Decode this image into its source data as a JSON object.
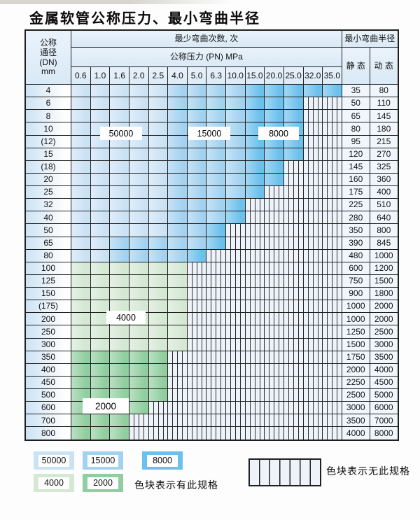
{
  "title": "金属软管公称压力、最小弯曲半径",
  "table": {
    "dn_header_lines": [
      "公称",
      "通径",
      "(DN)",
      "mm"
    ],
    "cycles_header": "最少弯曲次数, 次",
    "pressure_header": "公称压力 (PN) MPa",
    "radius_header": "最小弯曲半径",
    "static_label": "静 态",
    "dynamic_label": "动 态",
    "pressure_columns": [
      "0.6",
      "1.0",
      "1.6",
      "2.0",
      "2.5",
      "4.0",
      "5.0",
      "6.3",
      "10.0",
      "15.0",
      "20.0",
      "25.0",
      "32.0",
      "35.0"
    ],
    "overlay_labels": [
      {
        "text": "50000"
      },
      {
        "text": "15000"
      },
      {
        "text": "8000"
      },
      {
        "text": "4000"
      },
      {
        "text": "2000"
      }
    ],
    "rows": [
      {
        "dn": "4",
        "static": "35",
        "dynamic": "80",
        "cells": [
          "50000",
          "50000",
          "50000",
          "50000",
          "50000",
          "15000",
          "15000",
          "15000",
          "15000",
          "8000",
          "8000",
          "8000",
          "8000",
          "8000"
        ]
      },
      {
        "dn": "6",
        "static": "50",
        "dynamic": "110",
        "cells": [
          "50000",
          "50000",
          "50000",
          "50000",
          "50000",
          "15000",
          "15000",
          "15000",
          "15000",
          "8000",
          "8000",
          "8000",
          "none",
          "none"
        ]
      },
      {
        "dn": "8",
        "static": "65",
        "dynamic": "145",
        "cells": [
          "50000",
          "50000",
          "50000",
          "50000",
          "50000",
          "15000",
          "15000",
          "15000",
          "15000",
          "8000",
          "8000",
          "8000",
          "none",
          "none"
        ]
      },
      {
        "dn": "10",
        "static": "80",
        "dynamic": "180",
        "cells": [
          "50000",
          "50000",
          "50000",
          "50000",
          "50000",
          "15000",
          "15000",
          "15000",
          "15000",
          "8000",
          "8000",
          "8000",
          "none",
          "none"
        ]
      },
      {
        "dn": "(12)",
        "static": "95",
        "dynamic": "215",
        "cells": [
          "50000",
          "50000",
          "50000",
          "50000",
          "50000",
          "15000",
          "15000",
          "15000",
          "15000",
          "8000",
          "8000",
          "8000",
          "none",
          "none"
        ]
      },
      {
        "dn": "15",
        "static": "120",
        "dynamic": "270",
        "cells": [
          "50000",
          "50000",
          "50000",
          "50000",
          "50000",
          "15000",
          "15000",
          "15000",
          "15000",
          "8000",
          "8000",
          "8000",
          "none",
          "none"
        ]
      },
      {
        "dn": "(18)",
        "static": "145",
        "dynamic": "325",
        "cells": [
          "50000",
          "50000",
          "50000",
          "50000",
          "50000",
          "15000",
          "15000",
          "15000",
          "15000",
          "8000",
          "8000",
          "none",
          "none",
          "none"
        ]
      },
      {
        "dn": "20",
        "static": "160",
        "dynamic": "360",
        "cells": [
          "50000",
          "50000",
          "50000",
          "50000",
          "50000",
          "15000",
          "15000",
          "15000",
          "15000",
          "8000",
          "8000",
          "none",
          "none",
          "none"
        ]
      },
      {
        "dn": "25",
        "static": "175",
        "dynamic": "400",
        "cells": [
          "50000",
          "50000",
          "50000",
          "50000",
          "50000",
          "15000",
          "15000",
          "15000",
          "15000",
          "8000",
          "none",
          "none",
          "none",
          "none"
        ]
      },
      {
        "dn": "32",
        "static": "225",
        "dynamic": "510",
        "cells": [
          "50000",
          "50000",
          "50000",
          "50000",
          "50000",
          "15000",
          "15000",
          "15000",
          "8000",
          "none",
          "none",
          "none",
          "none",
          "none"
        ]
      },
      {
        "dn": "40",
        "static": "280",
        "dynamic": "640",
        "cells": [
          "50000",
          "50000",
          "50000",
          "50000",
          "50000",
          "15000",
          "15000",
          "15000",
          "8000",
          "none",
          "none",
          "none",
          "none",
          "none"
        ]
      },
      {
        "dn": "50",
        "static": "350",
        "dynamic": "800",
        "cells": [
          "50000",
          "50000",
          "50000",
          "50000",
          "50000",
          "15000",
          "15000",
          "8000",
          "none",
          "none",
          "none",
          "none",
          "none",
          "none"
        ]
      },
      {
        "dn": "65",
        "static": "390",
        "dynamic": "845",
        "cells": [
          "50000",
          "50000",
          "15000",
          "15000",
          "15000",
          "15000",
          "15000",
          "8000",
          "none",
          "none",
          "none",
          "none",
          "none",
          "none"
        ]
      },
      {
        "dn": "80",
        "static": "480",
        "dynamic": "1000",
        "cells": [
          "50000",
          "50000",
          "15000",
          "15000",
          "15000",
          "15000",
          "8000",
          "none",
          "none",
          "none",
          "none",
          "none",
          "none",
          "none"
        ]
      },
      {
        "dn": "100",
        "static": "600",
        "dynamic": "1200",
        "cells": [
          "4000",
          "4000",
          "4000",
          "4000",
          "4000",
          "4000",
          "none",
          "none",
          "none",
          "none",
          "none",
          "none",
          "none",
          "none"
        ]
      },
      {
        "dn": "125",
        "static": "750",
        "dynamic": "1500",
        "cells": [
          "4000",
          "4000",
          "4000",
          "4000",
          "4000",
          "4000",
          "none",
          "none",
          "none",
          "none",
          "none",
          "none",
          "none",
          "none"
        ]
      },
      {
        "dn": "150",
        "static": "900",
        "dynamic": "1800",
        "cells": [
          "4000",
          "4000",
          "4000",
          "4000",
          "4000",
          "4000",
          "none",
          "none",
          "none",
          "none",
          "none",
          "none",
          "none",
          "none"
        ]
      },
      {
        "dn": "(175)",
        "static": "1000",
        "dynamic": "2000",
        "cells": [
          "4000",
          "4000",
          "4000",
          "4000",
          "4000",
          "4000",
          "none",
          "none",
          "none",
          "none",
          "none",
          "none",
          "none",
          "none"
        ]
      },
      {
        "dn": "200",
        "static": "1000",
        "dynamic": "2000",
        "cells": [
          "4000",
          "4000",
          "4000",
          "4000",
          "4000",
          "4000",
          "none",
          "none",
          "none",
          "none",
          "none",
          "none",
          "none",
          "none"
        ]
      },
      {
        "dn": "250",
        "static": "1250",
        "dynamic": "2500",
        "cells": [
          "4000",
          "4000",
          "4000",
          "4000",
          "4000",
          "4000",
          "none",
          "none",
          "none",
          "none",
          "none",
          "none",
          "none",
          "none"
        ]
      },
      {
        "dn": "300",
        "static": "1500",
        "dynamic": "3000",
        "cells": [
          "4000",
          "4000",
          "4000",
          "4000",
          "4000",
          "4000",
          "none",
          "none",
          "none",
          "none",
          "none",
          "none",
          "none",
          "none"
        ]
      },
      {
        "dn": "350",
        "static": "1750",
        "dynamic": "3500",
        "cells": [
          "2000",
          "2000",
          "2000",
          "2000",
          "2000",
          "none",
          "none",
          "none",
          "none",
          "none",
          "none",
          "none",
          "none",
          "none"
        ]
      },
      {
        "dn": "400",
        "static": "2000",
        "dynamic": "4000",
        "cells": [
          "2000",
          "2000",
          "2000",
          "2000",
          "2000",
          "none",
          "none",
          "none",
          "none",
          "none",
          "none",
          "none",
          "none",
          "none"
        ]
      },
      {
        "dn": "450",
        "static": "2250",
        "dynamic": "4500",
        "cells": [
          "2000",
          "2000",
          "2000",
          "2000",
          "2000",
          "none",
          "none",
          "none",
          "none",
          "none",
          "none",
          "none",
          "none",
          "none"
        ]
      },
      {
        "dn": "500",
        "static": "2500",
        "dynamic": "5000",
        "cells": [
          "2000",
          "2000",
          "2000",
          "2000",
          "2000",
          "none",
          "none",
          "none",
          "none",
          "none",
          "none",
          "none",
          "none",
          "none"
        ]
      },
      {
        "dn": "600",
        "static": "3000",
        "dynamic": "6000",
        "cells": [
          "2000",
          "2000",
          "2000",
          "2000",
          "none",
          "none",
          "none",
          "none",
          "none",
          "none",
          "none",
          "none",
          "none",
          "none"
        ]
      },
      {
        "dn": "700",
        "static": "3500",
        "dynamic": "7000",
        "cells": [
          "2000",
          "2000",
          "2000",
          "none",
          "none",
          "none",
          "none",
          "none",
          "none",
          "none",
          "none",
          "none",
          "none",
          "none"
        ]
      },
      {
        "dn": "800",
        "static": "4000",
        "dynamic": "8000",
        "cells": [
          "2000",
          "2000",
          "2000",
          "none",
          "none",
          "none",
          "none",
          "none",
          "none",
          "none",
          "none",
          "none",
          "none",
          "none"
        ]
      }
    ]
  },
  "legend": {
    "items": [
      {
        "label": "50000",
        "color": "#cbe2f5"
      },
      {
        "label": "15000",
        "color": "#a3d2f0"
      },
      {
        "label": "8000",
        "color": "#6cc0ec"
      },
      {
        "label": "4000",
        "color": "#d4e8d3"
      },
      {
        "label": "2000",
        "color": "#90ce9f"
      }
    ],
    "has_spec_text": "色块表示有此规格",
    "no_spec_text": "色块表示无此规格"
  },
  "colors": {
    "c50000": "#cbe2f5",
    "c15000": "#a3d2f0",
    "c8000": "#6cc0ec",
    "c4000": "#d4e8d3",
    "c2000": "#90ce9f",
    "none_bg": "#eef3fa",
    "grid": "#1f1f1f"
  }
}
